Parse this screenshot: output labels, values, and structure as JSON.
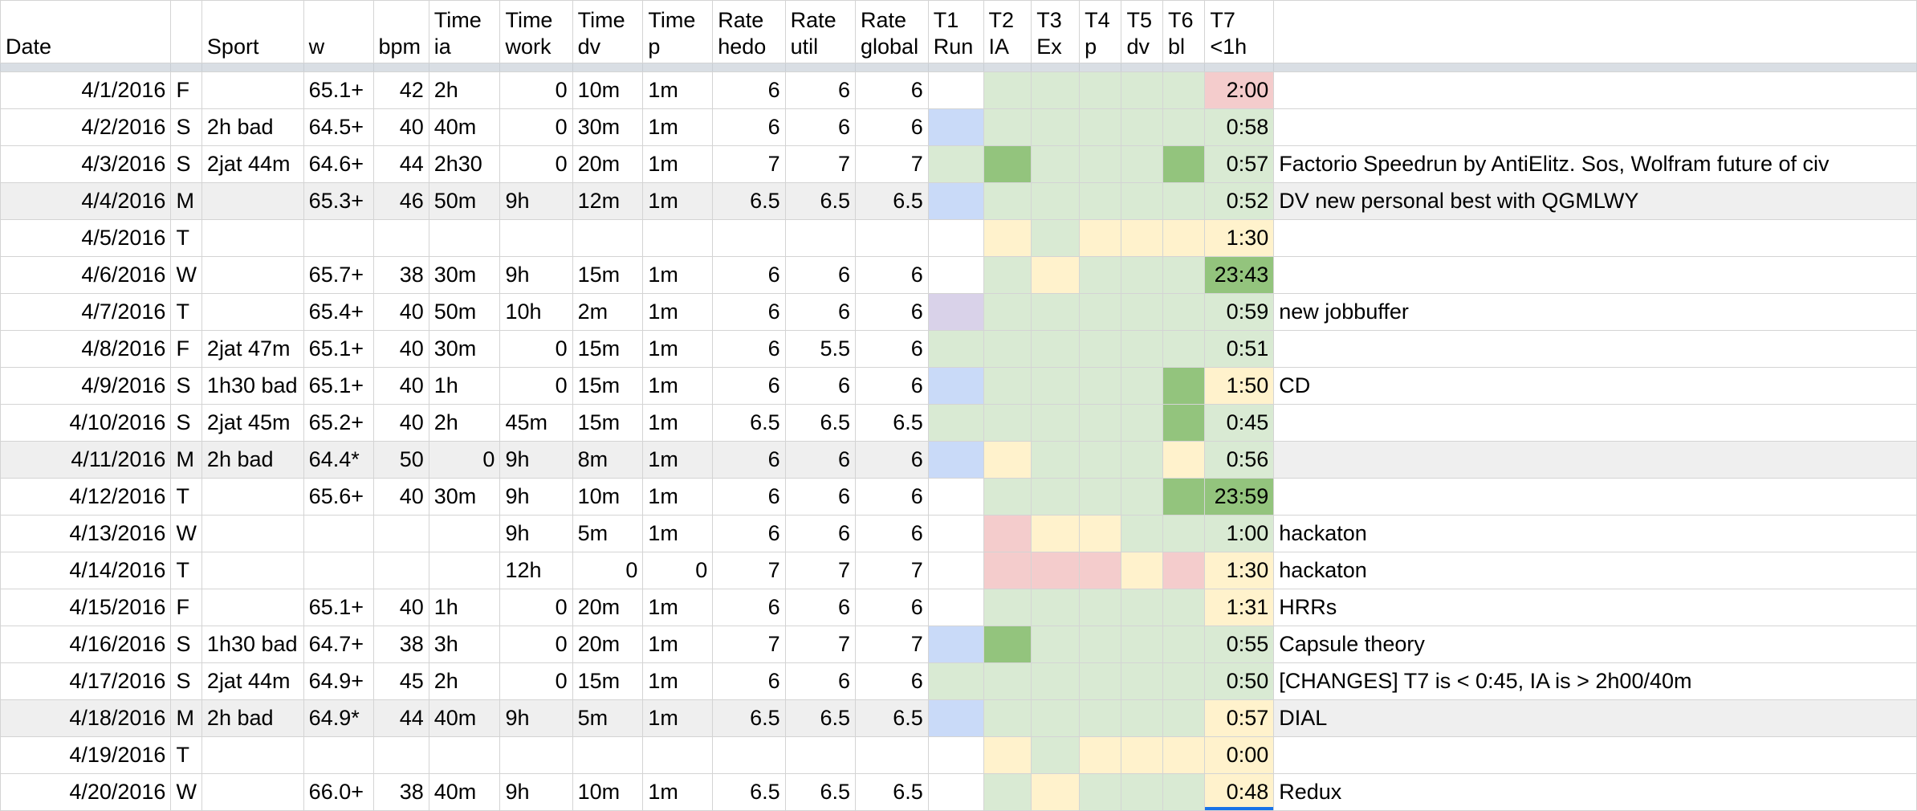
{
  "headers": [
    {
      "key": "date",
      "label": "Date"
    },
    {
      "key": "day",
      "label": ""
    },
    {
      "key": "sport",
      "label": "Sport"
    },
    {
      "key": "w",
      "label": "w"
    },
    {
      "key": "bpm",
      "label": "bpm"
    },
    {
      "key": "ia",
      "label": "Time ia"
    },
    {
      "key": "work",
      "label": "Time work"
    },
    {
      "key": "dv",
      "label": "Time dv"
    },
    {
      "key": "p",
      "label": "Time p"
    },
    {
      "key": "hedo",
      "label": "Rate hedo"
    },
    {
      "key": "util",
      "label": "Rate util"
    },
    {
      "key": "global",
      "label": "Rate global"
    },
    {
      "key": "t1",
      "label": "T1 Run"
    },
    {
      "key": "t2",
      "label": "T2 IA"
    },
    {
      "key": "t3",
      "label": "T3 Ex"
    },
    {
      "key": "t4",
      "label": "T4 p"
    },
    {
      "key": "t5",
      "label": "T5 dv"
    },
    {
      "key": "t6",
      "label": "T6 bl"
    },
    {
      "key": "t7",
      "label": "T7 <1h"
    },
    {
      "key": "note",
      "label": ""
    }
  ],
  "colors": {
    "lg": "#d9ead3",
    "dg": "#93c47d",
    "y": "#fff2cc",
    "r": "#f4cccc",
    "b": "#c9daf8",
    "p": "#d9d2e9",
    "shade": "#efefef",
    "grid": "#d4d4d4",
    "selection": "#1a73e8"
  },
  "rows": [
    {
      "date": "4/1/2016",
      "day": "F",
      "sport": "",
      "w": "65.1+",
      "bpm": "42",
      "ia": "2h",
      "work": "0",
      "dv": "10m",
      "p": "1m",
      "hedo": "6",
      "util": "6",
      "global": "6",
      "t7": "2:00",
      "note": "",
      "fills": {
        "t2": "lg",
        "t3": "lg",
        "t4": "lg",
        "t5": "lg",
        "t6": "lg",
        "t7": "r"
      }
    },
    {
      "date": "4/2/2016",
      "day": "S",
      "sport": "2h bad",
      "w": "64.5+",
      "bpm": "40",
      "ia": "40m",
      "work": "0",
      "dv": "30m",
      "p": "1m",
      "hedo": "6",
      "util": "6",
      "global": "6",
      "t7": "0:58",
      "note": "",
      "fills": {
        "t1": "b",
        "t2": "lg",
        "t3": "lg",
        "t4": "lg",
        "t5": "lg",
        "t6": "lg",
        "t7": "lg"
      }
    },
    {
      "date": "4/3/2016",
      "day": "S",
      "sport": "2jat 44m",
      "w": "64.6+",
      "bpm": "44",
      "ia": "2h30",
      "work": "0",
      "dv": "20m",
      "p": "1m",
      "hedo": "7",
      "util": "7",
      "global": "7",
      "t7": "0:57",
      "note": "Factorio Speedrun by AntiElitz. Sos, Wolfram future of civ",
      "fills": {
        "t1": "lg",
        "t2": "dg",
        "t3": "lg",
        "t4": "lg",
        "t5": "lg",
        "t6": "dg",
        "t7": "lg"
      }
    },
    {
      "date": "4/4/2016",
      "day": "M",
      "sport": "",
      "w": "65.3+",
      "bpm": "46",
      "ia": "50m",
      "work": "9h",
      "dv": "12m",
      "p": "1m",
      "hedo": "6.5",
      "util": "6.5",
      "global": "6.5",
      "t7": "0:52",
      "note": "DV new personal best with QGMLWY",
      "shade": true,
      "fills": {
        "t1": "b",
        "t2": "lg",
        "t3": "lg",
        "t4": "lg",
        "t5": "lg",
        "t6": "lg",
        "t7": "lg"
      }
    },
    {
      "date": "4/5/2016",
      "day": "T",
      "sport": "",
      "w": "",
      "bpm": "",
      "ia": "",
      "work": "",
      "dv": "",
      "p": "",
      "hedo": "",
      "util": "",
      "global": "",
      "t7": "1:30",
      "note": "",
      "fills": {
        "t2": "y",
        "t3": "lg",
        "t4": "y",
        "t5": "y",
        "t6": "y",
        "t7": "y"
      }
    },
    {
      "date": "4/6/2016",
      "day": "W",
      "sport": "",
      "w": "65.7+",
      "bpm": "38",
      "ia": "30m",
      "work": "9h",
      "dv": "15m",
      "p": "1m",
      "hedo": "6",
      "util": "6",
      "global": "6",
      "t7": "23:43",
      "note": "",
      "fills": {
        "t2": "lg",
        "t3": "y",
        "t4": "lg",
        "t5": "lg",
        "t6": "lg",
        "t7": "dg"
      }
    },
    {
      "date": "4/7/2016",
      "day": "T",
      "sport": "",
      "w": "65.4+",
      "bpm": "40",
      "ia": "50m",
      "work": "10h",
      "dv": "2m",
      "p": "1m",
      "hedo": "6",
      "util": "6",
      "global": "6",
      "t7": "0:59",
      "note": "new jobbuffer",
      "fills": {
        "t1": "p",
        "t2": "lg",
        "t3": "lg",
        "t4": "lg",
        "t5": "lg",
        "t6": "lg",
        "t7": "lg"
      }
    },
    {
      "date": "4/8/2016",
      "day": "F",
      "sport": "2jat 47m",
      "w": "65.1+",
      "bpm": "40",
      "ia": "30m",
      "work": "0",
      "dv": "15m",
      "p": "1m",
      "hedo": "6",
      "util": "5.5",
      "global": "6",
      "t7": "0:51",
      "note": "",
      "fills": {
        "t1": "lg",
        "t2": "lg",
        "t3": "lg",
        "t4": "lg",
        "t5": "lg",
        "t6": "lg",
        "t7": "lg"
      }
    },
    {
      "date": "4/9/2016",
      "day": "S",
      "sport": "1h30 bad",
      "w": "65.1+",
      "bpm": "40",
      "ia": "1h",
      "work": "0",
      "dv": "15m",
      "p": "1m",
      "hedo": "6",
      "util": "6",
      "global": "6",
      "t7": "1:50",
      "note": "CD",
      "fills": {
        "t1": "b",
        "t2": "lg",
        "t3": "lg",
        "t4": "lg",
        "t5": "lg",
        "t6": "dg",
        "t7": "y"
      }
    },
    {
      "date": "4/10/2016",
      "day": "S",
      "sport": "2jat 45m",
      "w": "65.2+",
      "bpm": "40",
      "ia": "2h",
      "work": "45m",
      "dv": "15m",
      "p": "1m",
      "hedo": "6.5",
      "util": "6.5",
      "global": "6.5",
      "t7": "0:45",
      "note": "",
      "fills": {
        "t1": "lg",
        "t2": "lg",
        "t3": "lg",
        "t4": "lg",
        "t5": "lg",
        "t6": "dg",
        "t7": "lg"
      }
    },
    {
      "date": "4/11/2016",
      "day": "M",
      "sport": "2h bad",
      "w": "64.4*",
      "bpm": "50",
      "ia": "0",
      "work": "9h",
      "dv": "8m",
      "p": "1m",
      "hedo": "6",
      "util": "6",
      "global": "6",
      "t7": "0:56",
      "note": "",
      "shade": true,
      "iaNum": true,
      "fills": {
        "t1": "b",
        "t2": "y",
        "t3": "lg",
        "t4": "lg",
        "t5": "lg",
        "t6": "y",
        "t7": "lg"
      }
    },
    {
      "date": "4/12/2016",
      "day": "T",
      "sport": "",
      "w": "65.6+",
      "bpm": "40",
      "ia": "30m",
      "work": "9h",
      "dv": "10m",
      "p": "1m",
      "hedo": "6",
      "util": "6",
      "global": "6",
      "t7": "23:59",
      "note": "",
      "fills": {
        "t2": "lg",
        "t3": "lg",
        "t4": "lg",
        "t5": "lg",
        "t6": "dg",
        "t7": "dg"
      }
    },
    {
      "date": "4/13/2016",
      "day": "W",
      "sport": "",
      "w": "",
      "bpm": "",
      "ia": "",
      "work": "9h",
      "dv": "5m",
      "p": "1m",
      "hedo": "6",
      "util": "6",
      "global": "6",
      "t7": "1:00",
      "note": "hackaton",
      "fills": {
        "t2": "r",
        "t3": "y",
        "t4": "y",
        "t5": "lg",
        "t6": "lg",
        "t7": "lg"
      }
    },
    {
      "date": "4/14/2016",
      "day": "T",
      "sport": "",
      "w": "",
      "bpm": "",
      "ia": "",
      "work": "12h",
      "dv": "0",
      "p": "0",
      "hedo": "7",
      "util": "7",
      "global": "7",
      "t7": "1:30",
      "note": "hackaton",
      "dvNum": true,
      "pNum": true,
      "fills": {
        "t2": "r",
        "t3": "r",
        "t4": "r",
        "t5": "y",
        "t6": "r",
        "t7": "y"
      }
    },
    {
      "date": "4/15/2016",
      "day": "F",
      "sport": "",
      "w": "65.1+",
      "bpm": "40",
      "ia": "1h",
      "work": "0",
      "dv": "20m",
      "p": "1m",
      "hedo": "6",
      "util": "6",
      "global": "6",
      "t7": "1:31",
      "note": "HRRs",
      "fills": {
        "t2": "lg",
        "t3": "lg",
        "t4": "lg",
        "t5": "lg",
        "t6": "lg",
        "t7": "y"
      }
    },
    {
      "date": "4/16/2016",
      "day": "S",
      "sport": "1h30 bad",
      "w": "64.7+",
      "bpm": "38",
      "ia": "3h",
      "work": "0",
      "dv": "20m",
      "p": "1m",
      "hedo": "7",
      "util": "7",
      "global": "7",
      "t7": "0:55",
      "note": "Capsule theory",
      "fills": {
        "t1": "b",
        "t2": "dg",
        "t3": "lg",
        "t4": "lg",
        "t5": "lg",
        "t6": "lg",
        "t7": "lg"
      }
    },
    {
      "date": "4/17/2016",
      "day": "S",
      "sport": "2jat 44m",
      "w": "64.9+",
      "bpm": "45",
      "ia": "2h",
      "work": "0",
      "dv": "15m",
      "p": "1m",
      "hedo": "6",
      "util": "6",
      "global": "6",
      "t7": "0:50",
      "note": "[CHANGES] T7 is < 0:45, IA is > 2h00/40m",
      "fills": {
        "t1": "lg",
        "t2": "lg",
        "t3": "lg",
        "t4": "lg",
        "t5": "lg",
        "t6": "lg",
        "t7": "lg"
      }
    },
    {
      "date": "4/18/2016",
      "day": "M",
      "sport": "2h bad",
      "w": "64.9*",
      "bpm": "44",
      "ia": "40m",
      "work": "9h",
      "dv": "5m",
      "p": "1m",
      "hedo": "6.5",
      "util": "6.5",
      "global": "6.5",
      "t7": "0:57",
      "note": "DIAL",
      "shade": true,
      "fills": {
        "t1": "b",
        "t2": "lg",
        "t3": "lg",
        "t4": "lg",
        "t5": "lg",
        "t6": "lg",
        "t7": "y"
      }
    },
    {
      "date": "4/19/2016",
      "day": "T",
      "sport": "",
      "w": "",
      "bpm": "",
      "ia": "",
      "work": "",
      "dv": "",
      "p": "",
      "hedo": "",
      "util": "",
      "global": "",
      "t7": "0:00",
      "note": "",
      "fills": {
        "t2": "y",
        "t3": "lg",
        "t4": "y",
        "t5": "y",
        "t6": "y",
        "t7": "y"
      }
    },
    {
      "date": "4/20/2016",
      "day": "W",
      "sport": "",
      "w": "66.0+",
      "bpm": "38",
      "ia": "40m",
      "work": "9h",
      "dv": "10m",
      "p": "1m",
      "hedo": "6.5",
      "util": "6.5",
      "global": "6.5",
      "t7": "0:48",
      "note": "Redux",
      "selected": "t7",
      "fills": {
        "t2": "lg",
        "t3": "y",
        "t4": "lg",
        "t5": "lg",
        "t6": "lg",
        "t7": "y"
      }
    }
  ]
}
